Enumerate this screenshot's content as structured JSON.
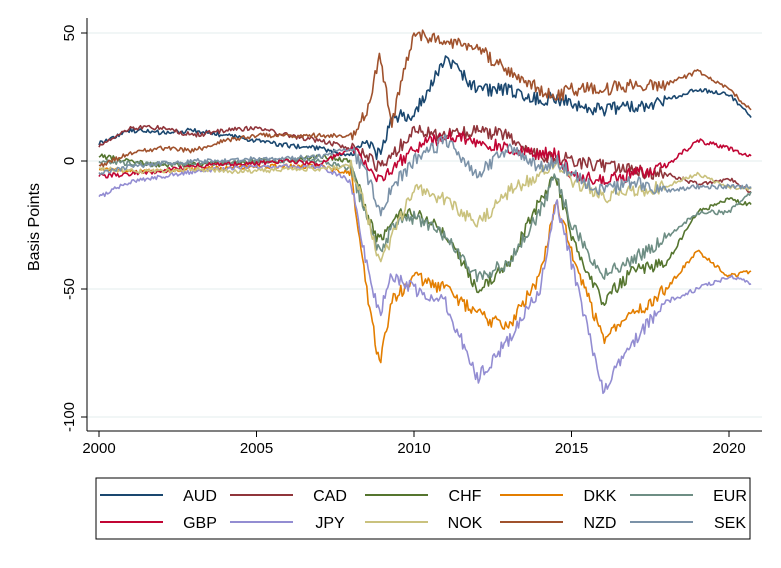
{
  "chart_data": {
    "type": "line",
    "title": "",
    "xlabel": "",
    "ylabel": "Basis Points",
    "xlim": [
      2000,
      2021
    ],
    "ylim": [
      -102,
      51
    ],
    "x_ticks": [
      2000,
      2005,
      2010,
      2015,
      2020
    ],
    "x_tick_labels": [
      "2000",
      "2005",
      "2010",
      "2015",
      "2020"
    ],
    "y_ticks": [
      50,
      0,
      -50,
      -100
    ],
    "y_tick_labels": [
      "50",
      "0",
      "-50",
      "-100"
    ],
    "grid": "horizontal",
    "legend_position": "bottom",
    "x": [
      2000.0,
      2001.0,
      2002.0,
      2003.0,
      2004.0,
      2005.0,
      2006.0,
      2007.0,
      2008.0,
      2008.5,
      2008.9,
      2009.3,
      2010.0,
      2011.0,
      2012.0,
      2013.0,
      2014.0,
      2014.5,
      2015.0,
      2016.0,
      2017.0,
      2018.0,
      2019.0,
      2020.0,
      2020.7
    ],
    "series": [
      {
        "name": "AUD",
        "color": "#1a476f",
        "values": [
          7,
          12,
          11,
          12,
          10,
          8,
          6,
          5,
          2,
          7,
          2,
          17,
          18,
          40,
          28,
          28,
          24,
          25,
          22,
          20,
          21,
          24,
          28,
          26,
          17
        ]
      },
      {
        "name": "CAD",
        "color": "#90353b",
        "values": [
          6,
          13,
          13,
          10,
          12,
          13,
          10,
          8,
          5,
          3,
          -3,
          2,
          12,
          10,
          12,
          10,
          2,
          2,
          0,
          -2,
          -4,
          -5,
          -9,
          -7,
          -12
        ]
      },
      {
        "name": "CHF",
        "color": "#55752f",
        "values": [
          2,
          0,
          -2,
          -1,
          -1,
          0,
          0,
          2,
          0,
          -20,
          -32,
          -22,
          -20,
          -28,
          -50,
          -40,
          -15,
          -5,
          -30,
          -55,
          -42,
          -40,
          -20,
          -15,
          -17
        ]
      },
      {
        "name": "DKK",
        "color": "#e37e00",
        "values": [
          -3,
          -4,
          -4,
          -3,
          -3,
          -2,
          -2,
          -2,
          -5,
          -50,
          -80,
          -55,
          -45,
          -50,
          -60,
          -65,
          -45,
          -15,
          -35,
          -70,
          -60,
          -50,
          -35,
          -45,
          -43
        ]
      },
      {
        "name": "EUR",
        "color": "#6e8e84",
        "values": [
          0,
          -1,
          -1,
          -1,
          -1,
          0,
          0,
          0,
          -3,
          -22,
          -36,
          -26,
          -22,
          -30,
          -45,
          -40,
          -20,
          -5,
          -25,
          -45,
          -38,
          -30,
          -20,
          -20,
          -12
        ]
      },
      {
        "name": "GBP",
        "color": "#c10534",
        "values": [
          -6,
          -5,
          -4,
          -2,
          -1,
          -1,
          0,
          -1,
          5,
          0,
          -8,
          -3,
          5,
          10,
          8,
          5,
          3,
          3,
          -5,
          -8,
          -5,
          -2,
          8,
          5,
          2
        ]
      },
      {
        "name": "JPY",
        "color": "#938dd2",
        "values": [
          -14,
          -8,
          -6,
          -4,
          -3,
          -2,
          -2,
          -2,
          -8,
          -40,
          -60,
          -45,
          -50,
          -55,
          -85,
          -70,
          -50,
          -15,
          -40,
          -90,
          -70,
          -55,
          -50,
          -45,
          -48
        ]
      },
      {
        "name": "NOK",
        "color": "#cac27e",
        "values": [
          -3,
          -4,
          -4,
          -3,
          -4,
          -4,
          -3,
          -3,
          -2,
          -20,
          -40,
          -30,
          -10,
          -15,
          -25,
          -12,
          -5,
          0,
          -8,
          -14,
          -12,
          -10,
          -5,
          -10,
          -11
        ]
      },
      {
        "name": "NZD",
        "color": "#a0522d",
        "values": [
          -2,
          3,
          5,
          4,
          8,
          10,
          10,
          10,
          10,
          20,
          40,
          15,
          50,
          47,
          44,
          35,
          28,
          25,
          28,
          28,
          30,
          30,
          35,
          28,
          20
        ]
      },
      {
        "name": "SEK",
        "color": "#7b92a8",
        "values": [
          -5,
          -2,
          -1,
          0,
          0,
          1,
          1,
          2,
          5,
          -5,
          -20,
          -10,
          0,
          8,
          -5,
          5,
          -3,
          0,
          -5,
          -12,
          -8,
          -12,
          -10,
          -10,
          -10
        ]
      }
    ]
  }
}
